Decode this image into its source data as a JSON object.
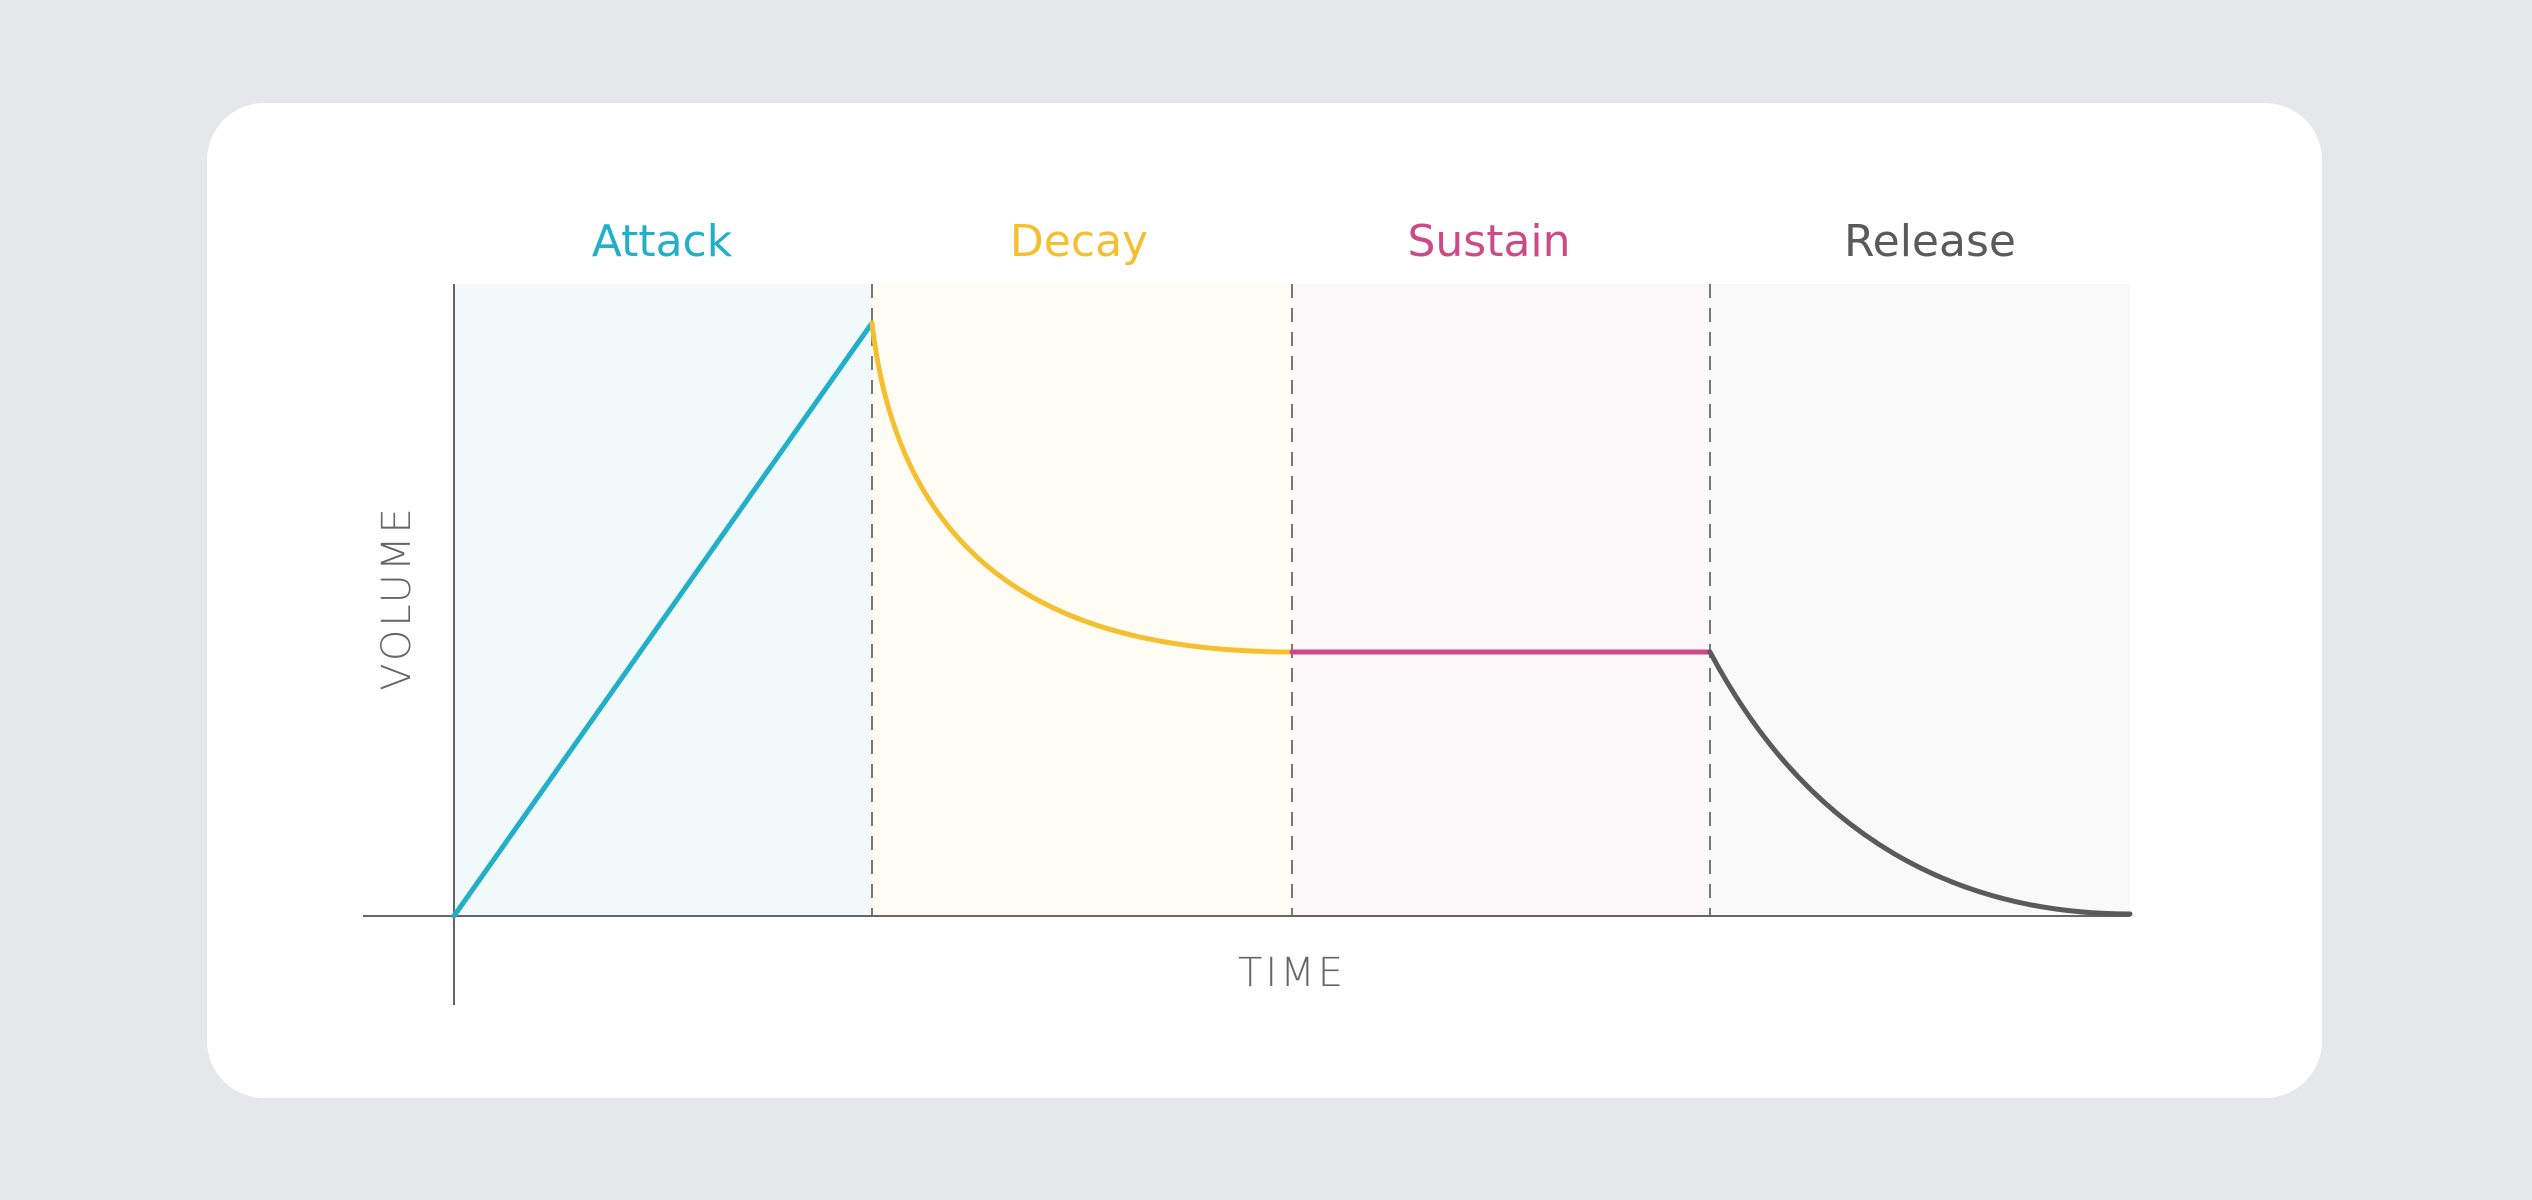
{
  "phases": [
    {
      "label": "Attack"
    },
    {
      "label": "Decay"
    },
    {
      "label": "Sustain"
    },
    {
      "label": "Release"
    }
  ],
  "axes": {
    "y_label": "VOLUME",
    "x_label": "TIME"
  }
}
